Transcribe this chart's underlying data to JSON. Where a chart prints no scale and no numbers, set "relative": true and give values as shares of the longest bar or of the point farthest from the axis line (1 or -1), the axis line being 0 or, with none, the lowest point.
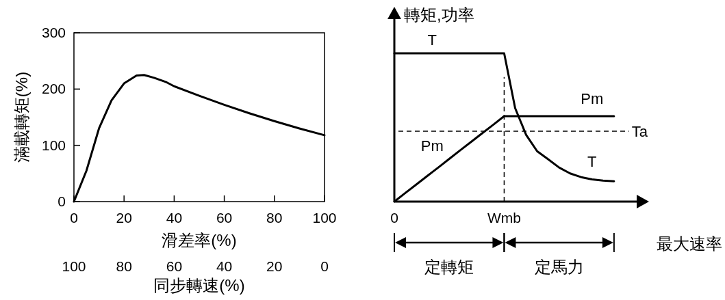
{
  "chart_data": [
    {
      "type": "line",
      "xlabel": "滑差率(%)",
      "ylabel": "滿載轉矩(%)",
      "x2label": "同步轉速(%)",
      "xlim": [
        0,
        100
      ],
      "ylim": [
        0,
        300
      ],
      "xticks": [
        0,
        20,
        40,
        60,
        80,
        100
      ],
      "yticks": [
        0,
        100,
        200,
        300
      ],
      "x2lim": [
        100,
        0
      ],
      "x2ticks": [
        100,
        80,
        60,
        40,
        20,
        0
      ],
      "series": [
        {
          "color": "#000000",
          "x": [
            0,
            5,
            10,
            15,
            20,
            25,
            28,
            32,
            37,
            40,
            50,
            60,
            70,
            80,
            90,
            100
          ],
          "values": [
            0,
            55,
            130,
            180,
            210,
            224,
            225,
            220,
            212,
            205,
            188,
            172,
            157,
            143,
            130,
            118
          ]
        }
      ]
    },
    {
      "type": "line",
      "relative": true,
      "xlabel": "最大速率",
      "ylabel": "轉矩,功率",
      "annotations": [
        "0",
        "Wmb",
        "定轉矩",
        "定馬力"
      ],
      "categories": [
        null,
        null,
        null,
        null,
        null,
        null,
        null,
        null,
        null,
        null,
        null,
        null,
        null,
        null,
        null,
        null,
        null,
        null,
        null,
        null,
        null
      ],
      "series": [
        {
          "name": "T",
          "color": "#000000",
          "values": [
            1,
            1,
            1,
            1,
            1,
            1,
            1,
            1,
            1,
            1,
            1,
            0.63,
            0.45,
            0.34,
            0.286,
            0.23,
            0.19,
            0.165,
            0.15,
            0.142,
            0.137
          ]
        },
        {
          "name": "Pm",
          "color": "#000000",
          "values": [
            0,
            0.058,
            0.115,
            0.173,
            0.23,
            0.288,
            0.346,
            0.403,
            0.461,
            0.518,
            0.576,
            0.576,
            0.576,
            0.576,
            0.576,
            0.576,
            0.576,
            0.576,
            0.576,
            0.576,
            0.576
          ]
        }
      ],
      "ref_lines": [
        {
          "axis": "y",
          "value": 0.475,
          "label": "Ta",
          "line_style": "dashed"
        }
      ]
    }
  ]
}
